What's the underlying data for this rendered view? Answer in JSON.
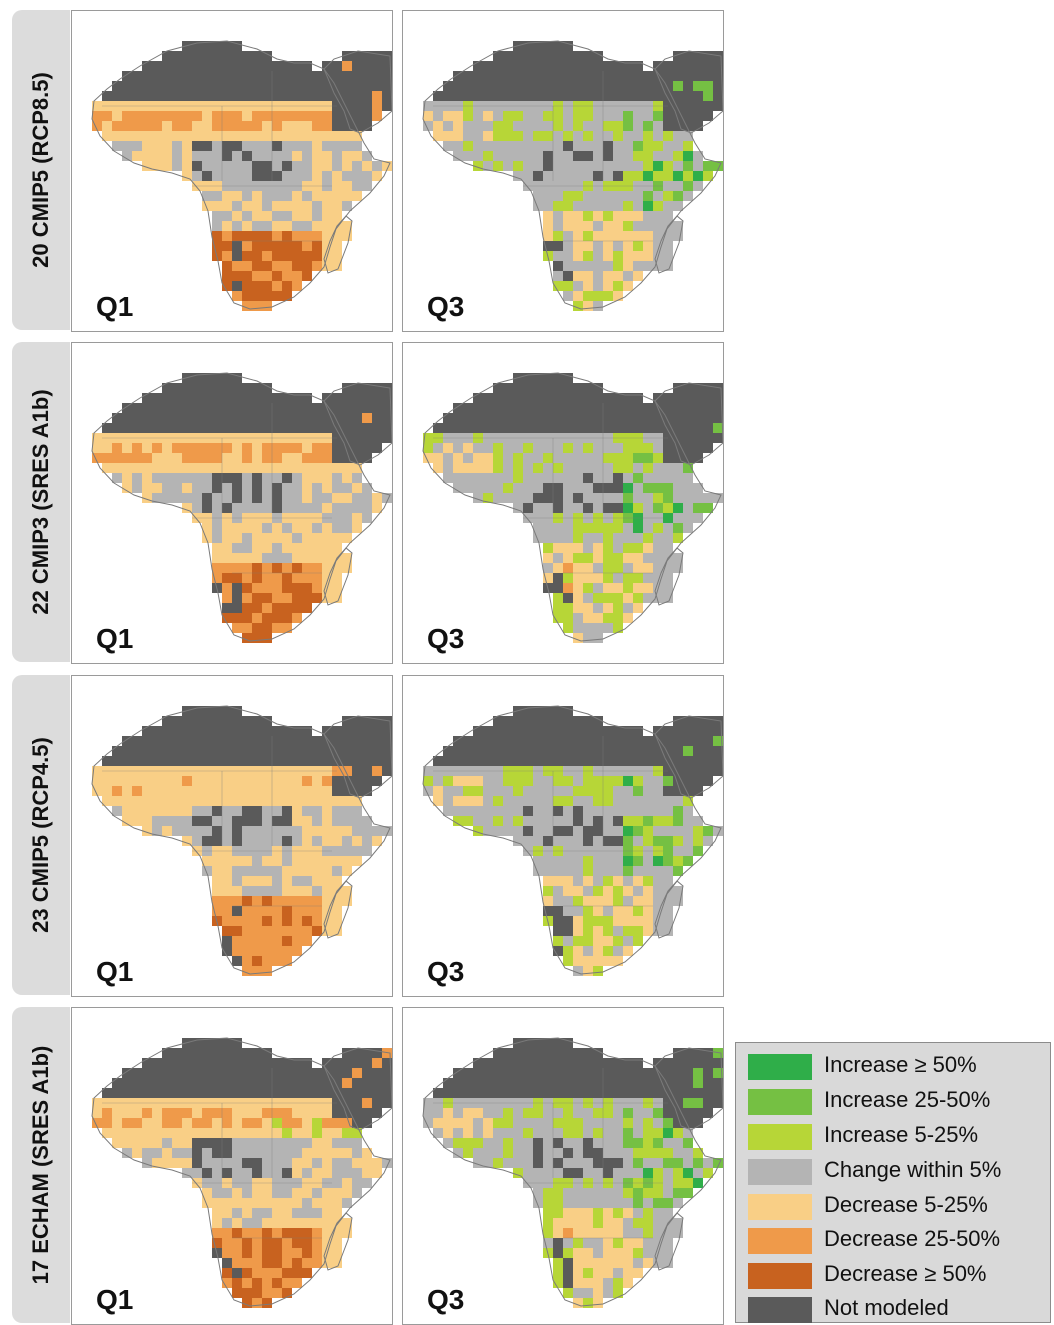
{
  "rows": [
    {
      "label": "20 CMIP5 (RCP8.5)"
    },
    {
      "label": "22 CMIP3 (SRES A1b)"
    },
    {
      "label": "23 CMIP5 (RCP4.5)"
    },
    {
      "label": "17 ECHAM (SRES A1b)"
    }
  ],
  "panel_tags": {
    "q1": "Q1",
    "q3": "Q3"
  },
  "map_colors": {
    "ocean": "#ffffff",
    "not_modeled": "#5a5a5a",
    "change_within": "#b4b4b4",
    "decrease_5_25": "#f9cf86",
    "decrease_25_50": "#ef9a4a",
    "decrease_50": "#c8621f",
    "increase_5_25": "#b7d637",
    "increase_25_50": "#75c043",
    "increase_50": "#2fae49",
    "border": "#7a7a7a"
  },
  "legend": {
    "items": [
      {
        "label": "Increase ≥ 50%",
        "color": "#2fae49"
      },
      {
        "label": "Increase 25-50%",
        "color": "#75c043"
      },
      {
        "label": "Increase 5-25%",
        "color": "#b7d637"
      },
      {
        "label": "Change within 5%",
        "color": "#b4b4b4"
      },
      {
        "label": "Decrease 5-25%",
        "color": "#f9cf86"
      },
      {
        "label": "Decrease 25-50%",
        "color": "#ef9a4a"
      },
      {
        "label": "Decrease ≥ 50%",
        "color": "#c8621f"
      },
      {
        "label": "Not modeled",
        "color": "#5a5a5a"
      }
    ]
  }
}
